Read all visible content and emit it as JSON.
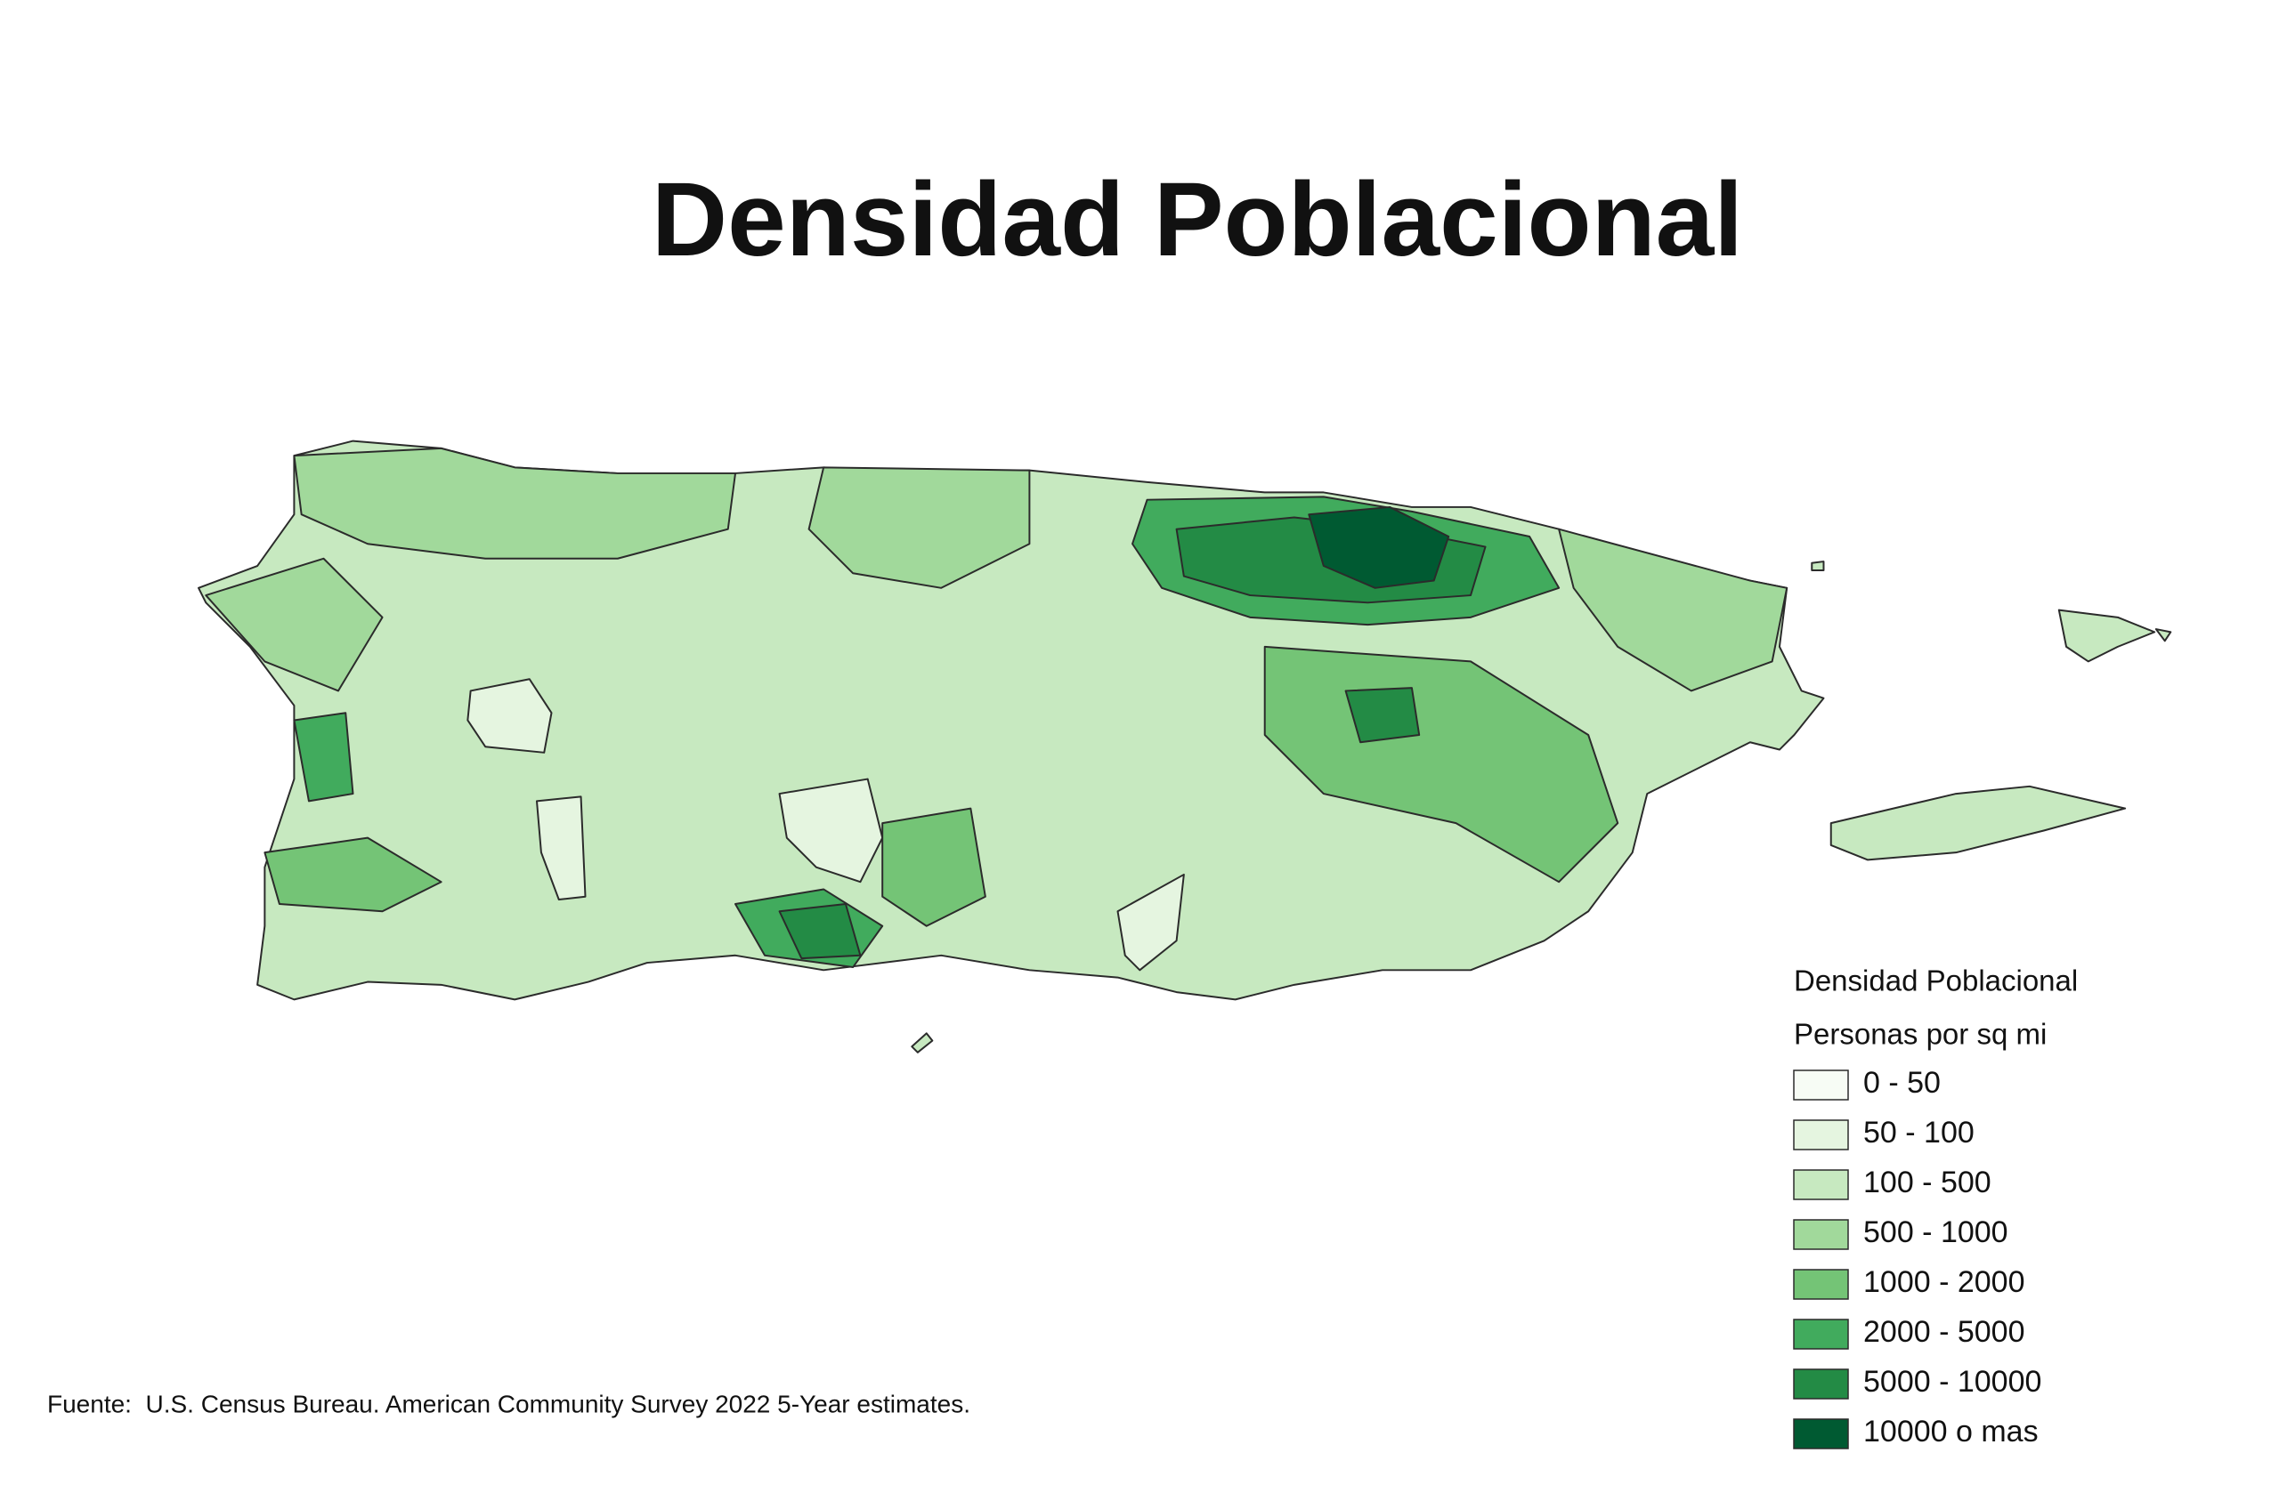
{
  "title": "Densidad Poblacional",
  "legend": {
    "title": "Densidad Poblacional",
    "subtitle": "Personas por sq mi",
    "items": [
      {
        "label": "0 - 50",
        "color": "#f7fcf5"
      },
      {
        "label": "50 - 100",
        "color": "#e5f5e0"
      },
      {
        "label": "100 - 500",
        "color": "#c7e9c0"
      },
      {
        "label": "500 - 1000",
        "color": "#a1d99b"
      },
      {
        "label": "1000 - 2000",
        "color": "#74c476"
      },
      {
        "label": "2000 - 5000",
        "color": "#41ab5d"
      },
      {
        "label": "5000 - 10000",
        "color": "#238b45"
      },
      {
        "label": "10000 o mas",
        "color": "#005a32"
      }
    ]
  },
  "source": "Fuente:  U.S. Census Bureau. American Community Survey 2022 5-Year estimates."
}
